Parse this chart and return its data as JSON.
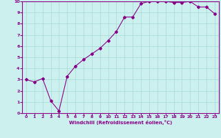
{
  "x": [
    0,
    1,
    2,
    3,
    4,
    5,
    6,
    7,
    8,
    9,
    10,
    11,
    12,
    13,
    14,
    15,
    16,
    17,
    18,
    19,
    20,
    21,
    22,
    23
  ],
  "y": [
    3.0,
    2.8,
    3.1,
    1.1,
    0.2,
    3.3,
    4.2,
    4.8,
    5.3,
    5.8,
    6.5,
    7.3,
    8.6,
    8.6,
    9.8,
    10.0,
    10.0,
    10.0,
    9.9,
    9.9,
    10.0,
    9.5,
    9.5,
    8.9
  ],
  "line_color": "#880088",
  "marker": "D",
  "marker_size": 2.0,
  "bg_color": "#ccf0ee",
  "grid_color": "#aadddd",
  "xlabel": "Windchill (Refroidissement éolien,°C)",
  "xlabel_color": "#880088",
  "tick_color": "#880088",
  "xlim": [
    -0.5,
    23.5
  ],
  "ylim": [
    0,
    10
  ],
  "yticks": [
    0,
    1,
    2,
    3,
    4,
    5,
    6,
    7,
    8,
    9,
    10
  ],
  "xticks": [
    0,
    1,
    2,
    3,
    4,
    5,
    6,
    7,
    8,
    9,
    10,
    11,
    12,
    13,
    14,
    15,
    16,
    17,
    18,
    19,
    20,
    21,
    22,
    23
  ]
}
